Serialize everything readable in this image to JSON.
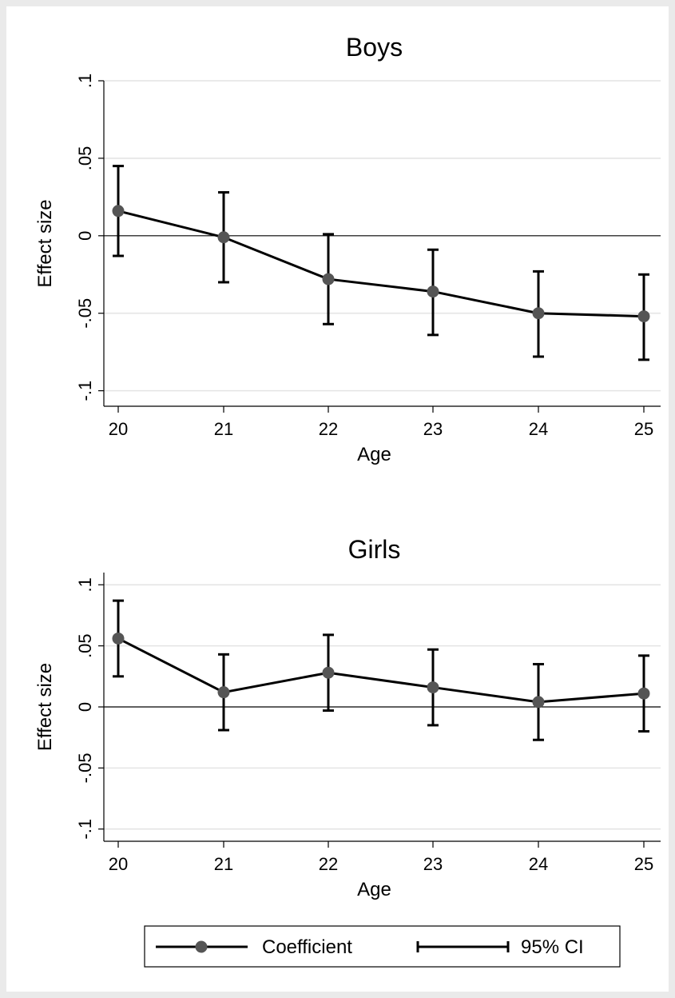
{
  "chart_data": [
    {
      "type": "line",
      "title": "Boys",
      "xlabel": "Age",
      "ylabel": "Effect size",
      "x": [
        20,
        21,
        22,
        23,
        24,
        25
      ],
      "xticks": [
        "20",
        "21",
        "22",
        "23",
        "24",
        "25"
      ],
      "yticks": [
        -0.1,
        -0.05,
        0,
        0.05,
        0.1
      ],
      "ytick_labels": [
        "-.1",
        "-.05",
        "0",
        ".05",
        ".1"
      ],
      "ylim": [
        -0.11,
        0.1
      ],
      "grid": true,
      "series": [
        {
          "name": "Coefficient",
          "values": [
            0.016,
            -0.001,
            -0.028,
            -0.036,
            -0.05,
            -0.052
          ],
          "ci_lower": [
            -0.013,
            -0.03,
            -0.057,
            -0.064,
            -0.078,
            -0.08
          ],
          "ci_upper": [
            0.045,
            0.028,
            0.001,
            -0.009,
            -0.023,
            -0.025
          ]
        }
      ]
    },
    {
      "type": "line",
      "title": "Girls",
      "xlabel": "Age",
      "ylabel": "Effect size",
      "x": [
        20,
        21,
        22,
        23,
        24,
        25
      ],
      "xticks": [
        "20",
        "21",
        "22",
        "23",
        "24",
        "25"
      ],
      "yticks": [
        -0.1,
        -0.05,
        0,
        0.05,
        0.1
      ],
      "ytick_labels": [
        "-.1",
        "-.05",
        "0",
        ".05",
        ".1"
      ],
      "ylim": [
        -0.11,
        0.11
      ],
      "grid": true,
      "series": [
        {
          "name": "Coefficient",
          "values": [
            0.056,
            0.012,
            0.028,
            0.016,
            0.004,
            0.011
          ],
          "ci_lower": [
            0.025,
            -0.019,
            -0.003,
            -0.015,
            -0.027,
            -0.02
          ],
          "ci_upper": [
            0.087,
            0.043,
            0.059,
            0.047,
            0.035,
            0.042
          ]
        }
      ]
    }
  ],
  "legend": {
    "placement": "bottom",
    "items": [
      {
        "label": "Coefficient",
        "symbol": "line-with-marker"
      },
      {
        "label": "95% CI",
        "symbol": "capped-line"
      }
    ]
  },
  "colors": {
    "background": "#eaeaea",
    "plot_area": "#ffffff",
    "ink": "#000000",
    "marker": "#555555",
    "gridline": "#e4e4e4"
  }
}
